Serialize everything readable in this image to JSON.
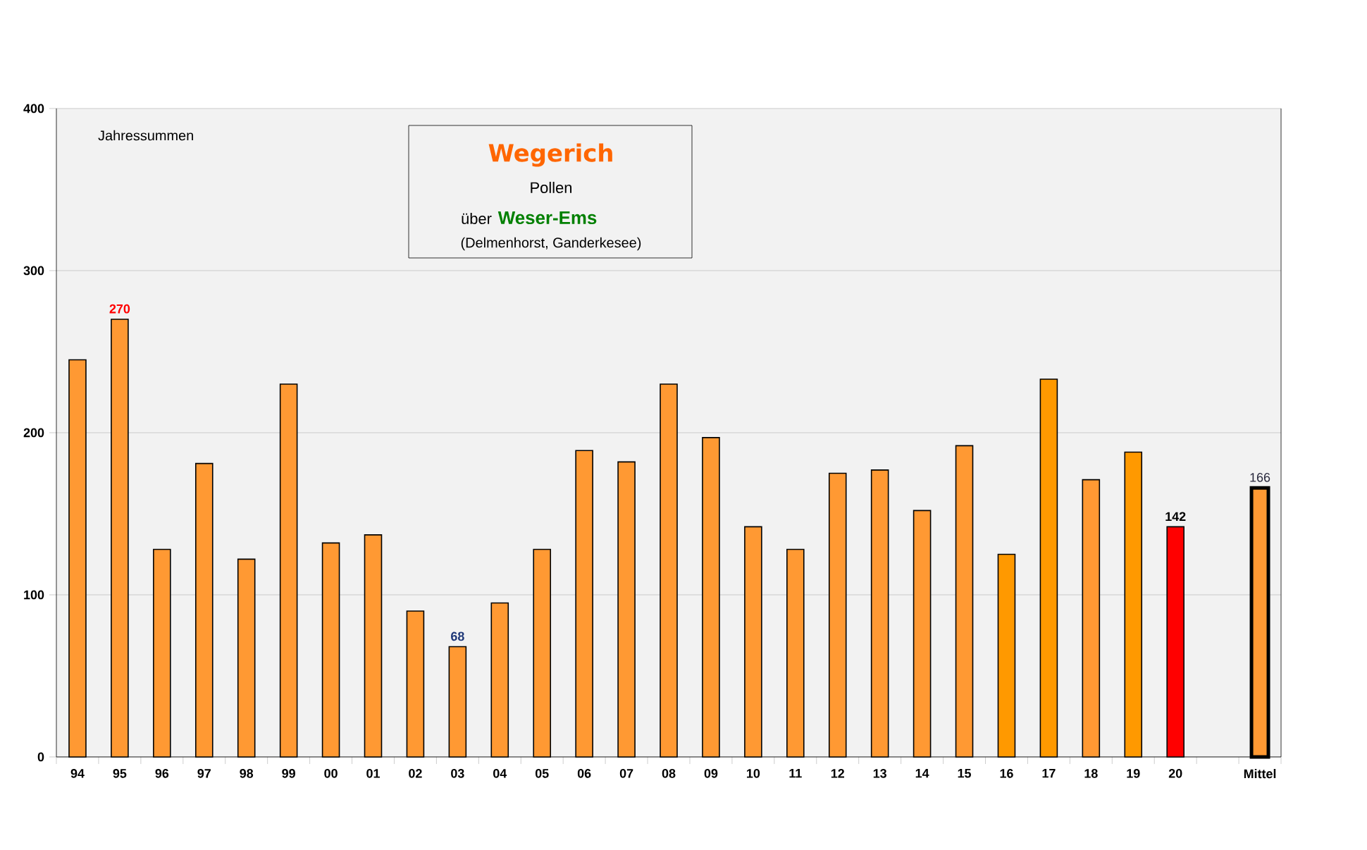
{
  "chart_data": {
    "type": "bar",
    "title": "Wegerich",
    "subtitle": "Pollen",
    "annotations": [
      "über",
      "Weser-Ems",
      "(Delmenhorst, Ganderkesee)",
      "Jahressummen"
    ],
    "categories": [
      "94",
      "95",
      "96",
      "97",
      "98",
      "99",
      "00",
      "01",
      "02",
      "03",
      "04",
      "05",
      "06",
      "07",
      "08",
      "09",
      "10",
      "11",
      "12",
      "13",
      "14",
      "15",
      "16",
      "17",
      "18",
      "19",
      "20",
      null,
      "Mittel"
    ],
    "values": [
      245,
      270,
      128,
      181,
      122,
      230,
      132,
      137,
      90,
      68,
      95,
      128,
      189,
      182,
      230,
      197,
      142,
      128,
      175,
      177,
      152,
      192,
      125,
      233,
      171,
      188,
      142,
      null,
      166
    ],
    "colors": [
      "#ff9933",
      "#ff9933",
      "#ff9933",
      "#ff9933",
      "#ff9933",
      "#ff9933",
      "#ff9933",
      "#ff9933",
      "#ff9933",
      "#ff9933",
      "#ff9933",
      "#ff9933",
      "#ff9933",
      "#ff9933",
      "#ff9933",
      "#ff9933",
      "#ff9933",
      "#ff9933",
      "#ff9933",
      "#ff9933",
      "#ff9933",
      "#ff9933",
      "#ff9900",
      "#ff9900",
      "#ff9933",
      "#ff9900",
      "#ff0000",
      "#ff9933",
      "#ff9933"
    ],
    "value_labels": [
      null,
      "270",
      null,
      null,
      null,
      null,
      null,
      null,
      null,
      "68",
      null,
      null,
      null,
      null,
      null,
      null,
      null,
      null,
      null,
      null,
      null,
      null,
      null,
      null,
      null,
      null,
      "142",
      null,
      "166"
    ],
    "ylim": [
      0,
      400
    ],
    "yticks": [
      0,
      100,
      200,
      300,
      400
    ],
    "grid": "y"
  }
}
